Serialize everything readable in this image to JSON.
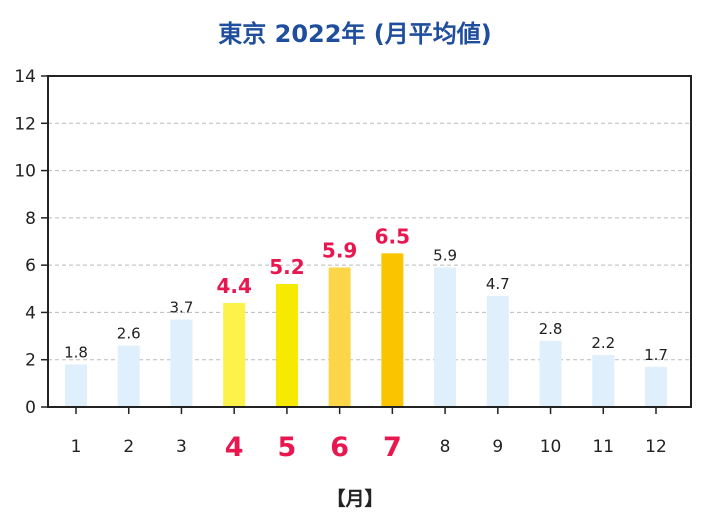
{
  "title": "東京 2022年 (月平均値)",
  "x_unit_label": "【月】",
  "colors": {
    "title": "#1f4e9c",
    "highlight_text": "#e8174f",
    "default_bar": "#dfeffc",
    "axis": "#222222",
    "grid": "#bbbbbb"
  },
  "chart_data": {
    "type": "bar",
    "categories": [
      "1",
      "2",
      "3",
      "4",
      "5",
      "6",
      "7",
      "8",
      "9",
      "10",
      "11",
      "12"
    ],
    "values": [
      1.8,
      2.6,
      3.7,
      4.4,
      5.2,
      5.9,
      6.5,
      5.9,
      4.7,
      2.8,
      2.2,
      1.7
    ],
    "value_labels": [
      "1.8",
      "2.6",
      "3.7",
      "4.4",
      "5.2",
      "5.9",
      "6.5",
      "5.9",
      "4.7",
      "2.8",
      "2.2",
      "1.7"
    ],
    "highlighted": [
      false,
      false,
      false,
      true,
      true,
      true,
      true,
      false,
      false,
      false,
      false,
      false
    ],
    "bar_colors": [
      "#dfeffc",
      "#dfeffc",
      "#dfeffc",
      "#fdf24a",
      "#f6ea00",
      "#fdd549",
      "#fbc400",
      "#dfeffc",
      "#dfeffc",
      "#dfeffc",
      "#dfeffc",
      "#dfeffc"
    ],
    "ylim": [
      0,
      14
    ],
    "yticks": [
      0,
      2,
      4,
      6,
      8,
      10,
      12,
      14
    ],
    "grid": true,
    "legend": "none"
  }
}
